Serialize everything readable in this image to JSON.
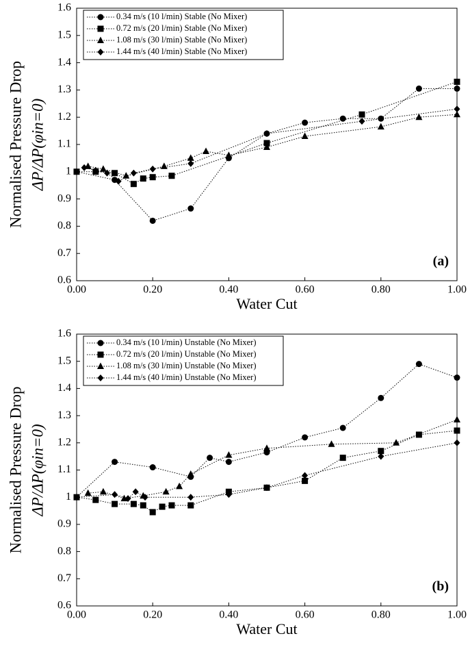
{
  "chart_data": [
    {
      "type": "line",
      "xlabel": "Water Cut",
      "ylabel": [
        "Normalised Pressure Drop",
        "ΔP/ΔP(φin=0)"
      ],
      "annotation": "(a)",
      "xlim": [
        0,
        1
      ],
      "ylim": [
        0.6,
        1.6
      ],
      "xticks": [
        {
          "value": 0,
          "label": "0.00"
        },
        {
          "value": 0.2,
          "label": "0.20"
        },
        {
          "value": 0.4,
          "label": "0.40"
        },
        {
          "value": 0.6,
          "label": "0.60"
        },
        {
          "value": 0.8,
          "label": "0.80"
        },
        {
          "value": 1,
          "label": "1.00"
        }
      ],
      "yticks": [
        0.6,
        0.7,
        0.8,
        0.9,
        1,
        1.1,
        1.2,
        1.3,
        1.4,
        1.5,
        1.6
      ],
      "legend": "upper left",
      "grid": false,
      "series": [
        {
          "name": "0.34 m/s (10 l/min) Stable (No Mixer)",
          "marker": "circle",
          "color": "#000000",
          "x": [
            0,
            0.1,
            0.2,
            0.3,
            0.4,
            0.5,
            0.6,
            0.7,
            0.8,
            0.9,
            1.0
          ],
          "values": [
            1.0,
            0.97,
            0.82,
            0.865,
            1.05,
            1.14,
            1.18,
            1.195,
            1.195,
            1.305,
            1.305
          ]
        },
        {
          "name": "0.72 m/s (20 l/min) Stable (No Mixer)",
          "marker": "square",
          "color": "#000000",
          "x": [
            0,
            0.05,
            0.1,
            0.15,
            0.175,
            0.2,
            0.25,
            0.5,
            0.75,
            1.0
          ],
          "values": [
            1.0,
            1.0,
            0.995,
            0.955,
            0.975,
            0.98,
            0.985,
            1.105,
            1.21,
            1.33
          ]
        },
        {
          "name": "1.08 m/s (30 l/min) Stable (No Mixer)",
          "marker": "triangle",
          "color": "#000000",
          "x": [
            0.03,
            0.07,
            0.13,
            0.23,
            0.3,
            0.34,
            0.4,
            0.5,
            0.6,
            0.8,
            0.9,
            1.0
          ],
          "values": [
            1.02,
            1.01,
            0.985,
            1.02,
            1.05,
            1.075,
            1.06,
            1.09,
            1.13,
            1.165,
            1.2,
            1.21
          ]
        },
        {
          "name": "1.44 m/s (40 l/min) Stable (No Mixer)",
          "marker": "diamond",
          "color": "#000000",
          "x": [
            0.02,
            0.05,
            0.08,
            0.11,
            0.15,
            0.2,
            0.3,
            0.5,
            0.75,
            1.0
          ],
          "values": [
            1.015,
            1.005,
            0.995,
            0.965,
            0.995,
            1.01,
            1.03,
            1.14,
            1.185,
            1.23
          ]
        }
      ]
    },
    {
      "type": "line",
      "xlabel": "Water Cut",
      "ylabel": [
        "Normalised Pressure Drop",
        "ΔP/ΔP(φin=0)"
      ],
      "annotation": "(b)",
      "xlim": [
        0,
        1
      ],
      "ylim": [
        0.6,
        1.6
      ],
      "xticks": [
        {
          "value": 0,
          "label": "0.00"
        },
        {
          "value": 0.2,
          "label": "0.20"
        },
        {
          "value": 0.4,
          "label": "0.40"
        },
        {
          "value": 0.6,
          "label": "0.60"
        },
        {
          "value": 0.8,
          "label": "0.80"
        },
        {
          "value": 1,
          "label": "1.00"
        }
      ],
      "yticks": [
        0.6,
        0.7,
        0.8,
        0.9,
        1,
        1.1,
        1.2,
        1.3,
        1.4,
        1.5,
        1.6
      ],
      "legend": "upper left",
      "grid": false,
      "series": [
        {
          "name": "0.34 m/s (10 l/min) Unstable (No Mixer)",
          "marker": "circle",
          "color": "#000000",
          "x": [
            0,
            0.1,
            0.2,
            0.3,
            0.35,
            0.4,
            0.5,
            0.6,
            0.7,
            0.8,
            0.9,
            1.0
          ],
          "values": [
            1.0,
            1.13,
            1.11,
            1.075,
            1.145,
            1.13,
            1.165,
            1.22,
            1.255,
            1.365,
            1.49,
            1.44
          ]
        },
        {
          "name": "0.72 m/s (20 l/min) Unstable (No Mixer)",
          "marker": "square",
          "color": "#000000",
          "x": [
            0,
            0.05,
            0.1,
            0.15,
            0.175,
            0.2,
            0.225,
            0.25,
            0.3,
            0.4,
            0.5,
            0.6,
            0.7,
            0.8,
            0.9,
            1.0
          ],
          "values": [
            1.0,
            0.99,
            0.975,
            0.975,
            0.97,
            0.945,
            0.965,
            0.97,
            0.97,
            1.02,
            1.035,
            1.06,
            1.145,
            1.17,
            1.23,
            1.245
          ]
        },
        {
          "name": "1.08 m/s (30 l/min) Unstable (No Mixer)",
          "marker": "triangle",
          "color": "#000000",
          "x": [
            0.03,
            0.07,
            0.125,
            0.175,
            0.235,
            0.27,
            0.3,
            0.4,
            0.5,
            0.67,
            0.84,
            1.0
          ],
          "values": [
            1.015,
            1.02,
            0.995,
            1.005,
            1.02,
            1.04,
            1.085,
            1.155,
            1.18,
            1.195,
            1.2,
            1.285
          ]
        },
        {
          "name": "1.44 m/s (40 l/min) Unstable (No Mixer)",
          "marker": "diamond",
          "color": "#000000",
          "x": [
            0,
            0.1,
            0.135,
            0.155,
            0.18,
            0.3,
            0.4,
            0.5,
            0.6,
            0.8,
            1.0
          ],
          "values": [
            1.0,
            1.01,
            0.995,
            1.02,
            1.0,
            1.0,
            1.01,
            1.035,
            1.08,
            1.15,
            1.2
          ]
        }
      ]
    }
  ]
}
